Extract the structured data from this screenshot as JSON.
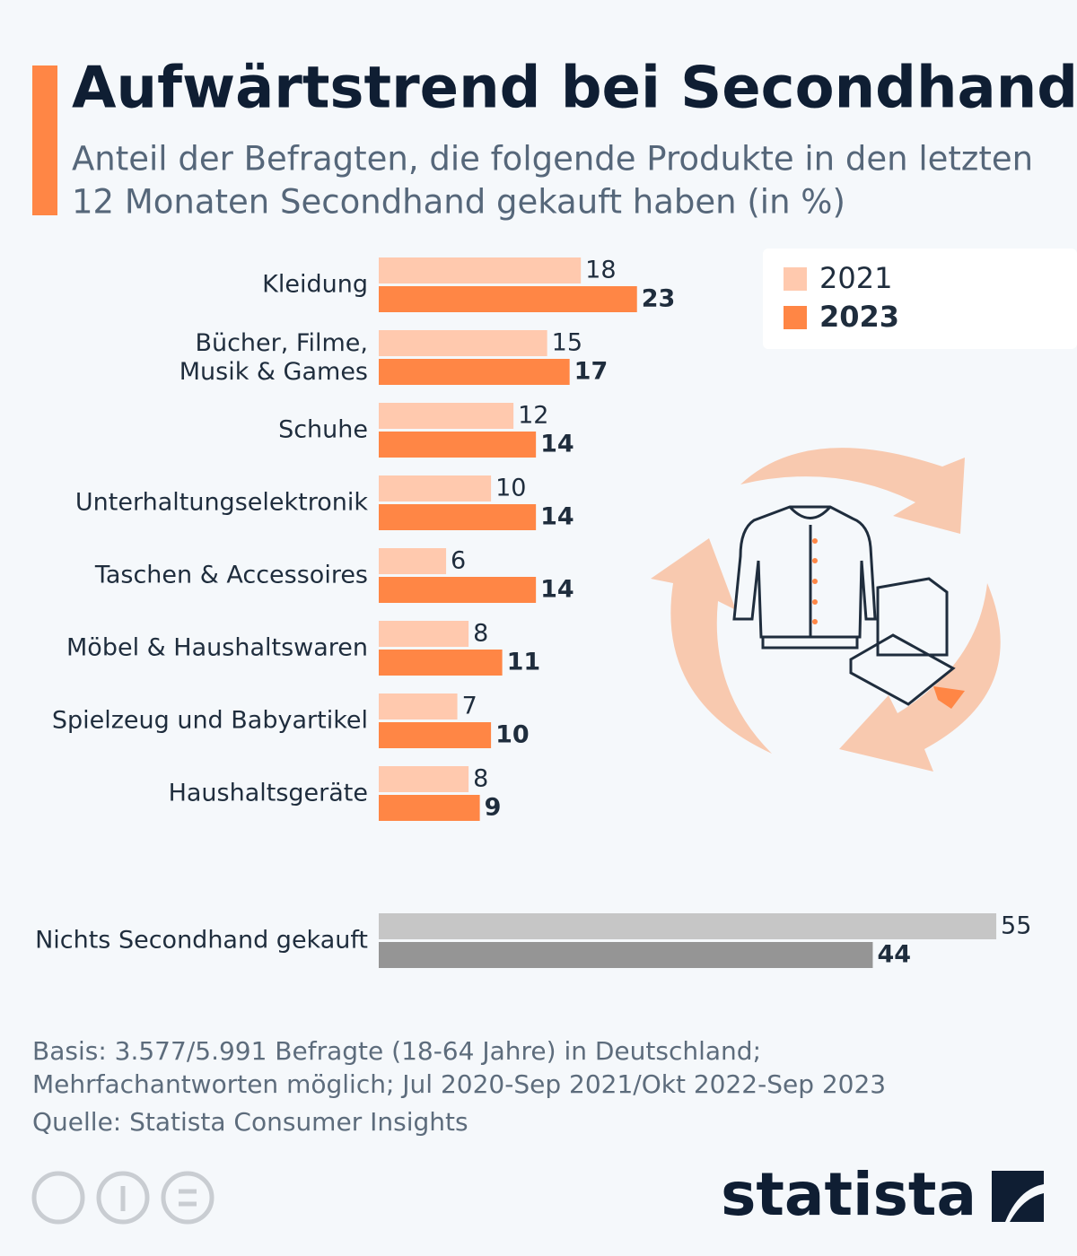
{
  "chart_data": {
    "type": "bar",
    "orientation": "horizontal",
    "title": "Aufwärtstrend bei Secondhand",
    "subtitle": [
      "Anteil der Befragten, die folgende Produkte in den letzten",
      "12 Monaten Secondhand gekauft haben (in %)"
    ],
    "categories": [
      "Kleidung",
      "Bücher, Filme,\nMusik & Games",
      "Schuhe",
      "Unterhaltungselektronik",
      "Taschen & Accessoires",
      "Möbel & Haushaltswaren",
      "Spielzeug und Babyartikel",
      "Haushaltsgeräte",
      "Nichts Secondhand gekauft"
    ],
    "series": [
      {
        "name": "2021",
        "color": "#ffc9ae",
        "colors": [
          "#ffc9ae",
          "#ffc9ae",
          "#ffc9ae",
          "#ffc9ae",
          "#ffc9ae",
          "#ffc9ae",
          "#ffc9ae",
          "#ffc9ae",
          "#c6c6c6"
        ],
        "values": [
          18,
          15,
          12,
          10,
          6,
          8,
          7,
          8,
          55
        ]
      },
      {
        "name": "2023",
        "color": "#ff8645",
        "colors": [
          "#ff8645",
          "#ff8645",
          "#ff8645",
          "#ff8645",
          "#ff8645",
          "#ff8645",
          "#ff8645",
          "#ff8645",
          "#959595"
        ],
        "values": [
          23,
          17,
          14,
          14,
          14,
          11,
          10,
          9,
          44
        ]
      }
    ],
    "legend": "top-right",
    "footnote": [
      "Basis: 3.577/5.991 Befragte (18-64 Jahre) in Deutschland;",
      "Mehrfachantworten möglich; Jul 2020-Sep 2021/Okt 2022-Sep 2023"
    ],
    "source": "Quelle: Statista Consumer Insights",
    "brand": "statista"
  }
}
